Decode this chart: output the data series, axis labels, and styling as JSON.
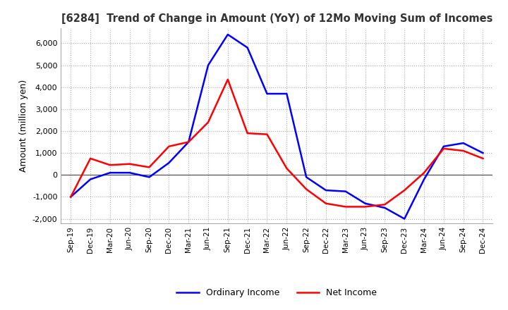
{
  "title": "[6284]  Trend of Change in Amount (YoY) of 12Mo Moving Sum of Incomes",
  "ylabel": "Amount (million yen)",
  "ylim": [
    -2200,
    6700
  ],
  "yticks": [
    -2000,
    -1000,
    0,
    1000,
    2000,
    3000,
    4000,
    5000,
    6000
  ],
  "x_labels": [
    "Sep-19",
    "Dec-19",
    "Mar-20",
    "Jun-20",
    "Sep-20",
    "Dec-20",
    "Mar-21",
    "Jun-21",
    "Sep-21",
    "Dec-21",
    "Mar-22",
    "Jun-22",
    "Sep-22",
    "Dec-22",
    "Mar-23",
    "Jun-23",
    "Sep-23",
    "Dec-23",
    "Mar-24",
    "Jun-24",
    "Sep-24",
    "Dec-24"
  ],
  "ordinary_income": [
    -1000,
    -200,
    100,
    100,
    -100,
    550,
    1500,
    5000,
    6400,
    5800,
    3700,
    3700,
    -100,
    -700,
    -750,
    -1300,
    -1500,
    -2000,
    -200,
    1300,
    1450,
    1000
  ],
  "net_income": [
    -1000,
    750,
    450,
    500,
    350,
    1300,
    1500,
    2400,
    4350,
    1900,
    1850,
    300,
    -650,
    -1300,
    -1450,
    -1450,
    -1350,
    -700,
    100,
    1200,
    1100,
    750
  ],
  "ordinary_color": "#0000ff",
  "net_color": "#ff0000",
  "background_color": "#ffffff",
  "grid_color": "#aaaaaa",
  "title_color": "#333333",
  "line_width": 1.8
}
